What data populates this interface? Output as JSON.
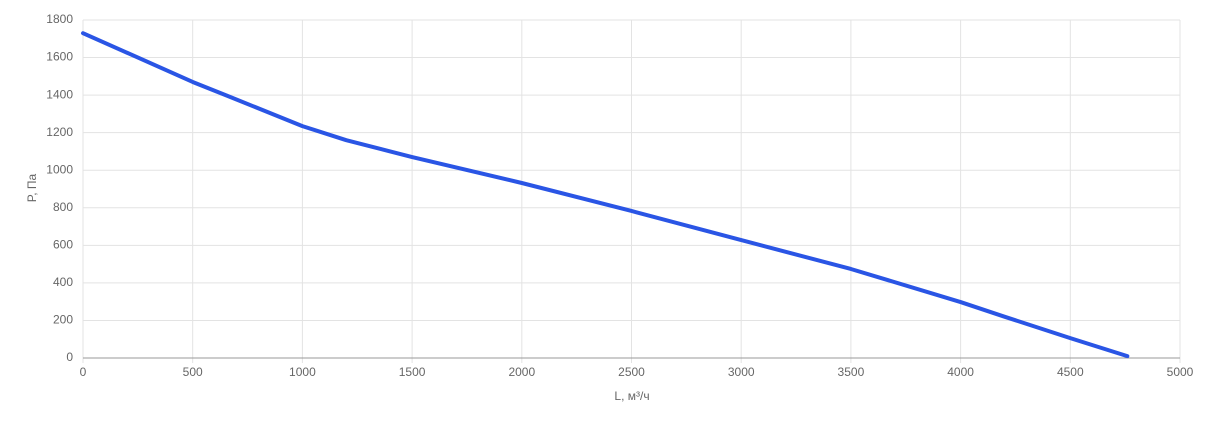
{
  "chart_data": {
    "type": "line",
    "x_label": "L, м³/ч",
    "y_label": "P, Па",
    "x": [
      0,
      500,
      650,
      1000,
      1200,
      1400,
      1500,
      2000,
      2500,
      3000,
      3500,
      4000,
      4200,
      4500,
      4760
    ],
    "values": [
      1730,
      1470,
      1400,
      1235,
      1160,
      1100,
      1070,
      932,
      783,
      628,
      474,
      298,
      220,
      106,
      10
    ],
    "color": "#2a55e5",
    "xlim": [
      0,
      5000
    ],
    "xticks": [
      0,
      500,
      1000,
      1500,
      2000,
      2500,
      3000,
      3500,
      4000,
      4500,
      5000
    ],
    "ylim": [
      0,
      1800
    ],
    "yticks": [
      0,
      200,
      400,
      600,
      800,
      1000,
      1200,
      1400,
      1600,
      1800
    ],
    "grid": true
  }
}
